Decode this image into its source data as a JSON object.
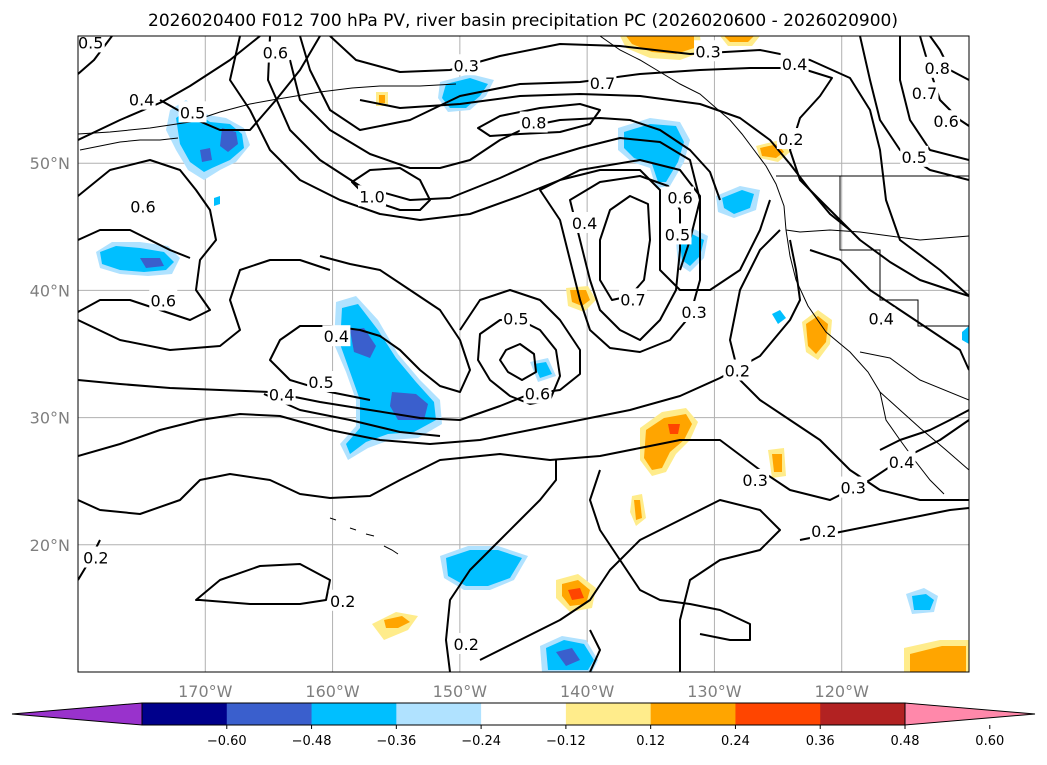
{
  "title": "2026020400 F012 700 hPa PV, river basin precipitation PC (2026020600 - 2026020900)",
  "map": {
    "projection": "plate-carree",
    "lon_range": [
      -180,
      -110
    ],
    "lat_range": [
      10,
      60
    ],
    "gridlines": true,
    "lon_ticks": [
      {
        "lon": -170,
        "label": "170°W"
      },
      {
        "lon": -160,
        "label": "160°W"
      },
      {
        "lon": -150,
        "label": "150°W"
      },
      {
        "lon": -140,
        "label": "140°W"
      },
      {
        "lon": -130,
        "label": "130°W"
      },
      {
        "lon": -120,
        "label": "120°W"
      }
    ],
    "lat_ticks": [
      {
        "lat": 50,
        "label": "50°N"
      },
      {
        "lat": 40,
        "label": "40°N"
      },
      {
        "lat": 30,
        "label": "30°N"
      },
      {
        "lat": 20,
        "label": "20°N"
      }
    ],
    "contour_labels": [
      {
        "text": "0.5",
        "lon": -179,
        "lat": 59.5
      },
      {
        "text": "0.4",
        "lon": -175,
        "lat": 55
      },
      {
        "text": "0.5",
        "lon": -171,
        "lat": 54
      },
      {
        "text": "0.6",
        "lon": -164.5,
        "lat": 58.7
      },
      {
        "text": "0.3",
        "lon": -149.5,
        "lat": 57.7
      },
      {
        "text": "0.3",
        "lon": -130.5,
        "lat": 58.8
      },
      {
        "text": "0.4",
        "lon": -123.7,
        "lat": 57.8
      },
      {
        "text": "0.7",
        "lon": -138.8,
        "lat": 56.3
      },
      {
        "text": "0.8",
        "lon": -144.2,
        "lat": 53.2
      },
      {
        "text": "0.8",
        "lon": -112.5,
        "lat": 57.5
      },
      {
        "text": "0.7",
        "lon": -113.5,
        "lat": 55.5
      },
      {
        "text": "0.6",
        "lon": -111.8,
        "lat": 53.3
      },
      {
        "text": "0.5",
        "lon": -114.3,
        "lat": 50.5
      },
      {
        "text": "0.2",
        "lon": -124,
        "lat": 51.9
      },
      {
        "text": "1.0",
        "lon": -156.9,
        "lat": 47.4
      },
      {
        "text": "0.6",
        "lon": -174.9,
        "lat": 46.6
      },
      {
        "text": "0.4",
        "lon": -140.2,
        "lat": 45.3
      },
      {
        "text": "0.6",
        "lon": -132.7,
        "lat": 47.3
      },
      {
        "text": "0.5",
        "lon": -132.9,
        "lat": 44.4
      },
      {
        "text": "0.7",
        "lon": -136.4,
        "lat": 39.3
      },
      {
        "text": "0.3",
        "lon": -131.6,
        "lat": 38.3
      },
      {
        "text": "0.6",
        "lon": -173.3,
        "lat": 39.2
      },
      {
        "text": "0.4",
        "lon": -159.7,
        "lat": 36.4
      },
      {
        "text": "0.5",
        "lon": -160.9,
        "lat": 32.8
      },
      {
        "text": "0.4",
        "lon": -164,
        "lat": 31.8
      },
      {
        "text": "0.5",
        "lon": -145.6,
        "lat": 37.8
      },
      {
        "text": "0.6",
        "lon": -143.9,
        "lat": 31.9
      },
      {
        "text": "0.4",
        "lon": -116.9,
        "lat": 37.8
      },
      {
        "text": "0.2",
        "lon": -128.2,
        "lat": 33.7
      },
      {
        "text": "0.3",
        "lon": -126.8,
        "lat": 25.1
      },
      {
        "text": "0.4",
        "lon": -115.3,
        "lat": 26.5
      },
      {
        "text": "0.3",
        "lon": -119.1,
        "lat": 24.5
      },
      {
        "text": "0.2",
        "lon": -121.4,
        "lat": 21.1
      },
      {
        "text": "0.2",
        "lon": -178.6,
        "lat": 19
      },
      {
        "text": "0.2",
        "lon": -159.2,
        "lat": 15.6
      },
      {
        "text": "0.2",
        "lon": -149.5,
        "lat": 12.2
      }
    ]
  },
  "colorbar": {
    "tick_labels": [
      "−0.60",
      "−0.48",
      "−0.36",
      "−0.24",
      "−0.12",
      "0.12",
      "0.24",
      "0.36",
      "0.48",
      "0.60"
    ],
    "colors": [
      "#9932cc",
      "#00008b",
      "#3a5fcd",
      "#00bfff",
      "#b0e2ff",
      "#ffffff",
      "#ffec8b",
      "#ffa500",
      "#ff4500",
      "#b22222",
      "#ff88aa"
    ],
    "extend": "both"
  },
  "precip_colors": {
    "light_blue": "#b0e2ff",
    "blue": "#00bfff",
    "dark_blue": "#3a5fcd",
    "light_yellow": "#ffec8b",
    "orange": "#ffa500",
    "red": "#ff4500"
  }
}
